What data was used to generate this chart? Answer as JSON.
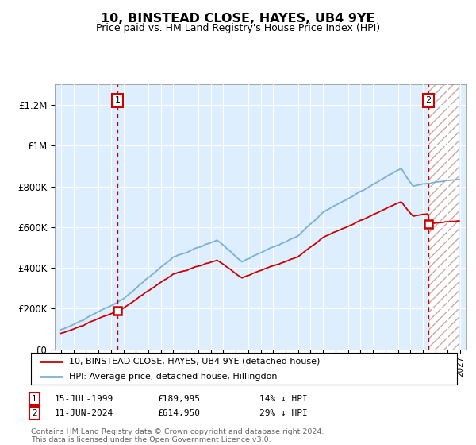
{
  "title": "10, BINSTEAD CLOSE, HAYES, UB4 9YE",
  "subtitle": "Price paid vs. HM Land Registry's House Price Index (HPI)",
  "hpi_label": "HPI: Average price, detached house, Hillingdon",
  "price_label": "10, BINSTEAD CLOSE, HAYES, UB4 9YE (detached house)",
  "sale1_date": "15-JUL-1999",
  "sale1_price": 189995,
  "sale1_hpi_diff": "14% ↓ HPI",
  "sale2_date": "11-JUN-2024",
  "sale2_price": 614950,
  "sale2_hpi_diff": "29% ↓ HPI",
  "footer": "Contains HM Land Registry data © Crown copyright and database right 2024.\nThis data is licensed under the Open Government Licence v3.0.",
  "red_color": "#cc0000",
  "blue_color": "#7ab0d4",
  "bg_color": "#ddeeff",
  "ylim": [
    0,
    1300000
  ],
  "yticks": [
    0,
    200000,
    400000,
    600000,
    800000,
    1000000,
    1200000
  ],
  "ytick_labels": [
    "£0",
    "£200K",
    "£400K",
    "£600K",
    "£800K",
    "£1M",
    "£1.2M"
  ],
  "xmin": 1994.5,
  "xmax": 2027.5,
  "future_start": 2024.42
}
